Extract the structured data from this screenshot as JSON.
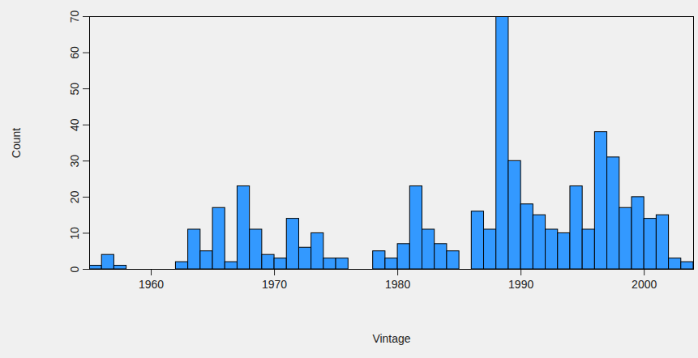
{
  "chart_data": {
    "type": "histogram",
    "x_label": "Vintage",
    "y_label": "Count",
    "bins": [
      1955,
      1956,
      1957,
      1958,
      1959,
      1960,
      1961,
      1962,
      1963,
      1964,
      1965,
      1966,
      1967,
      1968,
      1969,
      1970,
      1971,
      1972,
      1973,
      1974,
      1975,
      1976,
      1977,
      1978,
      1979,
      1980,
      1981,
      1982,
      1983,
      1984,
      1985,
      1986,
      1987,
      1988,
      1989,
      1990,
      1991,
      1992,
      1993,
      1994,
      1995,
      1996,
      1997,
      1998,
      1999,
      2000,
      2001,
      2002,
      2003,
      2004
    ],
    "values": [
      1,
      4,
      1,
      0,
      0,
      0,
      0,
      2,
      11,
      5,
      17,
      2,
      23,
      11,
      4,
      3,
      14,
      6,
      10,
      3,
      3,
      0,
      0,
      5,
      3,
      7,
      23,
      11,
      7,
      5,
      0,
      16,
      11,
      70,
      30,
      18,
      15,
      11,
      10,
      23,
      11,
      38,
      31,
      17,
      20,
      14,
      15,
      3,
      2
    ],
    "color": "#3399ff",
    "xlim": [
      1955,
      2004
    ],
    "xticks": [
      1960,
      1970,
      1980,
      1990,
      2000
    ],
    "ylim": [
      0,
      70
    ],
    "yticks": [
      0,
      10,
      20,
      30,
      40,
      50,
      60,
      70
    ],
    "grid": false
  }
}
